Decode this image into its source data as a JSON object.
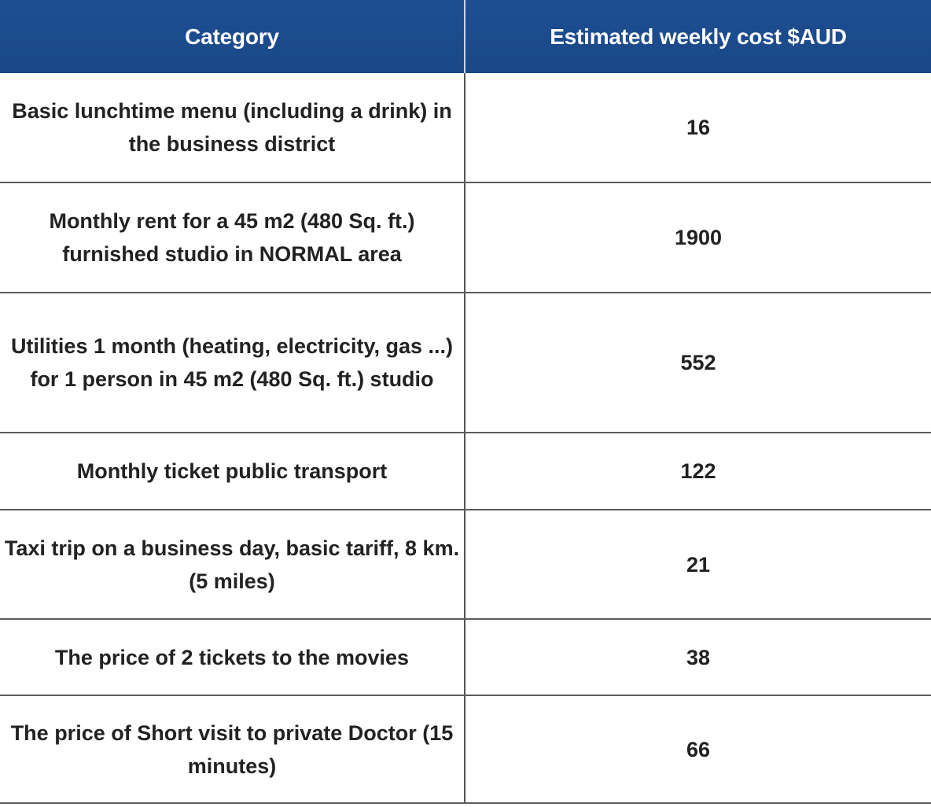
{
  "table": {
    "headers": {
      "category": "Category",
      "cost": "Estimated weekly cost $AUD"
    },
    "rows": [
      {
        "category": "Basic lunchtime menu (including a drink) in the business district",
        "cost": "16"
      },
      {
        "category": "Monthly rent for a 45 m2 (480 Sq. ft.) furnished studio in NORMAL area",
        "cost": "1900"
      },
      {
        "category": "Utilities 1 month (heating, electricity, gas ...) for 1 person in 45 m2 (480 Sq. ft.) studio",
        "cost": "552"
      },
      {
        "category": "Monthly ticket public transport",
        "cost": "122"
      },
      {
        "category": "Taxi trip on a business day, basic tariff, 8 km. (5 miles)",
        "cost": "21"
      },
      {
        "category": "The price of 2 tickets to the movies",
        "cost": "38"
      },
      {
        "category": "The price of Short visit to private Doctor (15 minutes)",
        "cost": "66"
      }
    ]
  },
  "colors": {
    "header_background": "#1c4b8c",
    "header_text": "#ffffff",
    "grid_line": "#5c5c5c"
  }
}
